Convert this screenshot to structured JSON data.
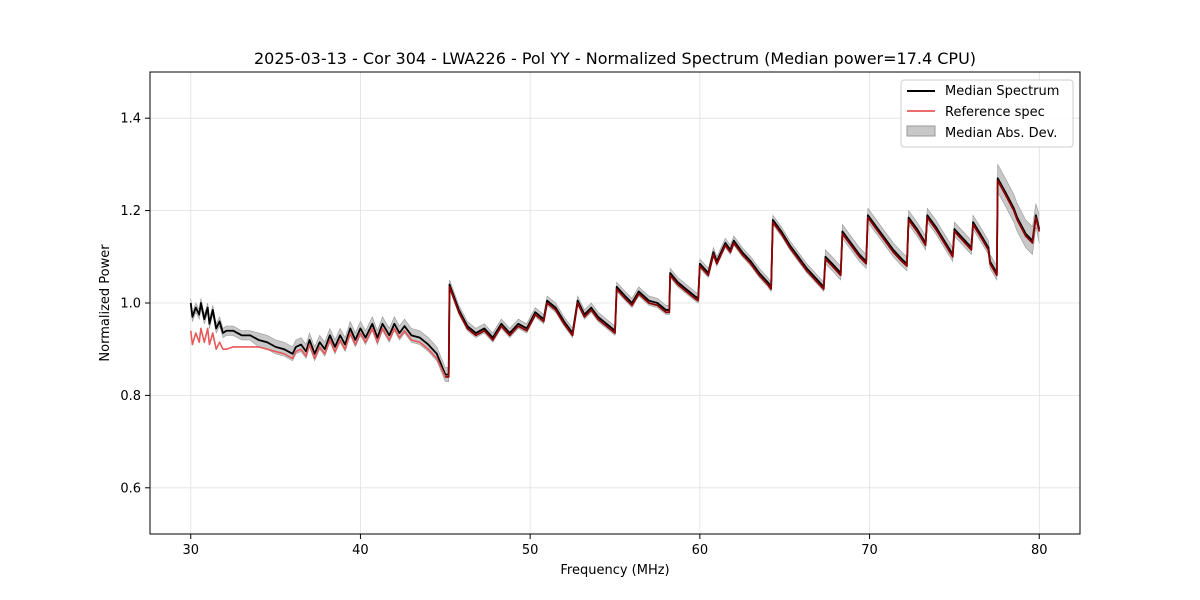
{
  "chart_data": {
    "type": "line",
    "title": "2025-03-13 - Cor 304 - LWA226 - Pol YY - Normalized Spectrum (Median power=17.4 CPU)",
    "xlabel": "Frequency (MHz)",
    "ylabel": "Normalized Power",
    "xlim": [
      27.6,
      82.4
    ],
    "ylim": [
      0.5,
      1.5
    ],
    "xticks": [
      30,
      40,
      50,
      60,
      70,
      80
    ],
    "yticks": [
      0.6,
      0.8,
      1.0,
      1.2,
      1.4
    ],
    "xtick_labels": [
      "30",
      "40",
      "50",
      "60",
      "70",
      "80"
    ],
    "ytick_labels": [
      "0.6",
      "0.8",
      "1.0",
      "1.2",
      "1.4"
    ],
    "grid": true,
    "legend_position": "top-right",
    "legend": [
      "Median Spectrum",
      "Reference spec",
      "Median Abs. Dev."
    ],
    "colors": {
      "median": "#000000",
      "reference": "#e8595a",
      "reference_overlap": "#8b0000",
      "mad_fill": "#c8c8c8",
      "mad_edge": "#999999",
      "grid": "#e0e0e0"
    },
    "series": [
      {
        "name": "Median Spectrum",
        "x": [
          30.0,
          30.1,
          30.3,
          30.5,
          30.6,
          30.8,
          31.0,
          31.1,
          31.3,
          31.5,
          31.7,
          31.9,
          32.1,
          32.5,
          33.0,
          33.5,
          34.0,
          34.5,
          35.0,
          35.5,
          36.0,
          36.2,
          36.5,
          36.8,
          37.0,
          37.3,
          37.6,
          37.9,
          38.2,
          38.5,
          38.8,
          39.1,
          39.4,
          39.7,
          40.0,
          40.3,
          40.7,
          41.0,
          41.3,
          41.7,
          42.0,
          42.3,
          42.6,
          43.0,
          43.5,
          44.0,
          44.5,
          45.0,
          45.2,
          45.25,
          45.8,
          46.3,
          46.8,
          47.3,
          47.8,
          48.3,
          48.8,
          49.3,
          49.8,
          50.3,
          50.8,
          51.0,
          51.5,
          52.0,
          52.5,
          52.8,
          53.2,
          53.6,
          54.0,
          54.5,
          55.0,
          55.1,
          55.6,
          56.0,
          56.4,
          57.0,
          57.5,
          58.0,
          58.2,
          58.25,
          58.7,
          59.2,
          59.7,
          59.9,
          60.0,
          60.5,
          60.8,
          61.0,
          61.5,
          61.8,
          62.0,
          62.5,
          63.0,
          63.5,
          64.0,
          64.2,
          64.3,
          64.8,
          65.3,
          65.8,
          66.3,
          66.8,
          67.3,
          67.4,
          67.8,
          68.3,
          68.4,
          68.9,
          69.4,
          69.8,
          69.9,
          70.4,
          70.9,
          71.4,
          71.9,
          72.2,
          72.3,
          72.8,
          73.3,
          73.4,
          73.9,
          74.4,
          74.9,
          75.0,
          75.5,
          76.0,
          76.1,
          76.6,
          77.0,
          77.1,
          77.5,
          77.55,
          78.0,
          78.5,
          78.7,
          79.2,
          79.6,
          79.8,
          80.0
        ],
        "values": [
          1.0,
          0.97,
          0.99,
          0.975,
          1.0,
          0.965,
          0.99,
          0.955,
          0.985,
          0.945,
          0.96,
          0.935,
          0.94,
          0.94,
          0.93,
          0.93,
          0.92,
          0.915,
          0.905,
          0.9,
          0.89,
          0.905,
          0.91,
          0.895,
          0.92,
          0.89,
          0.915,
          0.9,
          0.93,
          0.905,
          0.93,
          0.91,
          0.945,
          0.92,
          0.945,
          0.925,
          0.955,
          0.925,
          0.955,
          0.93,
          0.955,
          0.935,
          0.95,
          0.93,
          0.925,
          0.91,
          0.89,
          0.845,
          0.845,
          1.04,
          0.985,
          0.95,
          0.935,
          0.945,
          0.925,
          0.955,
          0.935,
          0.955,
          0.945,
          0.98,
          0.965,
          1.005,
          0.99,
          0.96,
          0.935,
          1.005,
          0.975,
          0.99,
          0.97,
          0.955,
          0.94,
          1.035,
          1.015,
          1.0,
          1.025,
          1.005,
          1.0,
          0.985,
          0.985,
          1.065,
          1.045,
          1.03,
          1.015,
          1.01,
          1.085,
          1.065,
          1.11,
          1.09,
          1.13,
          1.115,
          1.135,
          1.11,
          1.09,
          1.065,
          1.045,
          1.035,
          1.18,
          1.155,
          1.125,
          1.1,
          1.075,
          1.055,
          1.035,
          1.1,
          1.085,
          1.065,
          1.155,
          1.13,
          1.105,
          1.09,
          1.19,
          1.165,
          1.14,
          1.115,
          1.095,
          1.085,
          1.185,
          1.16,
          1.13,
          1.19,
          1.165,
          1.135,
          1.105,
          1.16,
          1.14,
          1.12,
          1.175,
          1.145,
          1.12,
          1.09,
          1.065,
          1.27,
          1.24,
          1.205,
          1.185,
          1.15,
          1.135,
          1.19,
          1.16
        ]
      },
      {
        "name": "Reference spec",
        "x": [
          30.0,
          30.1,
          30.3,
          30.5,
          30.6,
          30.8,
          31.0,
          31.1,
          31.3,
          31.5,
          31.7,
          31.9,
          32.1,
          32.5,
          33.0,
          33.5,
          34.0,
          34.5,
          35.0,
          35.5,
          36.0,
          36.2,
          36.5,
          36.8,
          37.0,
          37.3,
          37.6,
          37.9,
          38.2,
          38.5,
          38.8,
          39.1,
          39.4,
          39.7,
          40.0,
          40.3,
          40.7,
          41.0,
          41.3,
          41.7,
          42.0,
          42.3,
          42.6,
          43.0,
          43.5,
          44.0,
          44.5,
          45.0,
          45.2,
          45.25,
          45.8,
          46.3,
          46.8,
          47.3,
          47.8,
          48.3,
          48.8,
          49.3,
          49.8,
          50.3,
          50.8,
          51.0,
          51.5,
          52.0,
          52.5,
          52.8,
          53.2,
          53.6,
          54.0,
          54.5,
          55.0,
          55.1,
          55.6,
          56.0,
          56.4,
          57.0,
          57.5,
          58.0,
          58.2,
          58.25,
          58.7,
          59.2,
          59.7,
          59.9,
          60.0,
          60.5,
          60.8,
          61.0,
          61.5,
          61.8,
          62.0,
          62.5,
          63.0,
          63.5,
          64.0,
          64.2,
          64.3,
          64.8,
          65.3,
          65.8,
          66.3,
          66.8,
          67.3,
          67.4,
          67.8,
          68.3,
          68.4,
          68.9,
          69.4,
          69.8,
          69.9,
          70.4,
          70.9,
          71.4,
          71.9,
          72.2,
          72.3,
          72.8,
          73.3,
          73.4,
          73.9,
          74.4,
          74.9,
          75.0,
          75.5,
          76.0,
          76.1,
          76.6,
          77.0,
          77.1,
          77.5,
          77.55,
          78.0,
          78.5,
          78.7,
          79.2,
          79.6,
          79.8,
          80.0
        ],
        "values": [
          0.94,
          0.91,
          0.935,
          0.915,
          0.945,
          0.915,
          0.945,
          0.91,
          0.935,
          0.9,
          0.915,
          0.9,
          0.9,
          0.905,
          0.905,
          0.905,
          0.905,
          0.9,
          0.895,
          0.89,
          0.88,
          0.895,
          0.9,
          0.885,
          0.91,
          0.88,
          0.905,
          0.89,
          0.92,
          0.895,
          0.92,
          0.9,
          0.935,
          0.91,
          0.935,
          0.915,
          0.945,
          0.915,
          0.945,
          0.92,
          0.945,
          0.925,
          0.94,
          0.92,
          0.915,
          0.9,
          0.88,
          0.84,
          0.84,
          1.035,
          0.98,
          0.945,
          0.93,
          0.94,
          0.92,
          0.95,
          0.93,
          0.95,
          0.94,
          0.975,
          0.96,
          1.0,
          0.985,
          0.955,
          0.93,
          1.0,
          0.97,
          0.985,
          0.965,
          0.95,
          0.935,
          1.03,
          1.01,
          0.995,
          1.02,
          1.0,
          0.995,
          0.98,
          0.98,
          1.06,
          1.04,
          1.025,
          1.01,
          1.005,
          1.08,
          1.06,
          1.105,
          1.085,
          1.125,
          1.11,
          1.13,
          1.105,
          1.085,
          1.06,
          1.04,
          1.03,
          1.175,
          1.15,
          1.12,
          1.095,
          1.07,
          1.05,
          1.03,
          1.095,
          1.08,
          1.06,
          1.15,
          1.125,
          1.1,
          1.085,
          1.185,
          1.16,
          1.135,
          1.11,
          1.09,
          1.08,
          1.18,
          1.155,
          1.125,
          1.185,
          1.16,
          1.13,
          1.1,
          1.155,
          1.135,
          1.115,
          1.17,
          1.14,
          1.115,
          1.085,
          1.06,
          1.265,
          1.235,
          1.2,
          1.18,
          1.145,
          1.13,
          1.185,
          1.155
        ]
      },
      {
        "name": "Median Abs. Dev.",
        "x": [
          30.0,
          30.1,
          30.3,
          30.5,
          30.6,
          30.8,
          31.0,
          31.1,
          31.3,
          31.5,
          31.7,
          31.9,
          32.1,
          32.5,
          33.0,
          33.5,
          34.0,
          34.5,
          35.0,
          35.5,
          36.0,
          36.2,
          36.5,
          36.8,
          37.0,
          37.3,
          37.6,
          37.9,
          38.2,
          38.5,
          38.8,
          39.1,
          39.4,
          39.7,
          40.0,
          40.3,
          40.7,
          41.0,
          41.3,
          41.7,
          42.0,
          42.3,
          42.6,
          43.0,
          43.5,
          44.0,
          44.5,
          45.0,
          45.2,
          45.25,
          45.8,
          46.3,
          46.8,
          47.3,
          47.8,
          48.3,
          48.8,
          49.3,
          49.8,
          50.3,
          50.8,
          51.0,
          51.5,
          52.0,
          52.5,
          52.8,
          53.2,
          53.6,
          54.0,
          54.5,
          55.0,
          55.1,
          55.6,
          56.0,
          56.4,
          57.0,
          57.5,
          58.0,
          58.2,
          58.25,
          58.7,
          59.2,
          59.7,
          59.9,
          60.0,
          60.5,
          60.8,
          61.0,
          61.5,
          61.8,
          62.0,
          62.5,
          63.0,
          63.5,
          64.0,
          64.2,
          64.3,
          64.8,
          65.3,
          65.8,
          66.3,
          66.8,
          67.3,
          67.4,
          67.8,
          68.3,
          68.4,
          68.9,
          69.4,
          69.8,
          69.9,
          70.4,
          70.9,
          71.4,
          71.9,
          72.2,
          72.3,
          72.8,
          73.3,
          73.4,
          73.9,
          74.4,
          74.9,
          75.0,
          75.5,
          76.0,
          76.1,
          76.6,
          77.0,
          77.1,
          77.5,
          77.55,
          78.0,
          78.5,
          78.7,
          79.2,
          79.6,
          79.8,
          80.0
        ],
        "upper": [
          1.01,
          0.98,
          1.0,
          0.985,
          1.01,
          0.975,
          1.0,
          0.965,
          0.995,
          0.955,
          0.97,
          0.945,
          0.95,
          0.95,
          0.94,
          0.94,
          0.935,
          0.93,
          0.92,
          0.915,
          0.905,
          0.92,
          0.925,
          0.91,
          0.935,
          0.905,
          0.93,
          0.915,
          0.945,
          0.92,
          0.945,
          0.925,
          0.96,
          0.935,
          0.96,
          0.94,
          0.97,
          0.94,
          0.97,
          0.945,
          0.97,
          0.95,
          0.965,
          0.945,
          0.94,
          0.925,
          0.905,
          0.86,
          0.86,
          1.05,
          0.995,
          0.96,
          0.945,
          0.955,
          0.935,
          0.965,
          0.945,
          0.965,
          0.955,
          0.99,
          0.975,
          1.015,
          1.0,
          0.97,
          0.945,
          1.015,
          0.985,
          1.0,
          0.98,
          0.965,
          0.95,
          1.045,
          1.025,
          1.01,
          1.035,
          1.015,
          1.01,
          0.995,
          0.995,
          1.075,
          1.055,
          1.04,
          1.025,
          1.02,
          1.095,
          1.075,
          1.12,
          1.1,
          1.14,
          1.125,
          1.145,
          1.12,
          1.1,
          1.075,
          1.055,
          1.045,
          1.19,
          1.165,
          1.135,
          1.11,
          1.085,
          1.065,
          1.045,
          1.115,
          1.1,
          1.08,
          1.17,
          1.145,
          1.12,
          1.105,
          1.205,
          1.18,
          1.155,
          1.13,
          1.11,
          1.1,
          1.2,
          1.175,
          1.145,
          1.205,
          1.18,
          1.15,
          1.12,
          1.175,
          1.155,
          1.135,
          1.19,
          1.16,
          1.135,
          1.105,
          1.08,
          1.3,
          1.27,
          1.235,
          1.215,
          1.18,
          1.165,
          1.215,
          1.19
        ],
        "lower": [
          0.99,
          0.96,
          0.98,
          0.965,
          0.99,
          0.955,
          0.98,
          0.945,
          0.975,
          0.935,
          0.95,
          0.925,
          0.93,
          0.93,
          0.92,
          0.92,
          0.905,
          0.9,
          0.89,
          0.885,
          0.875,
          0.89,
          0.895,
          0.88,
          0.905,
          0.875,
          0.9,
          0.885,
          0.915,
          0.89,
          0.915,
          0.895,
          0.93,
          0.905,
          0.93,
          0.91,
          0.94,
          0.91,
          0.94,
          0.915,
          0.94,
          0.92,
          0.935,
          0.915,
          0.91,
          0.895,
          0.875,
          0.83,
          0.83,
          1.03,
          0.975,
          0.94,
          0.925,
          0.935,
          0.915,
          0.945,
          0.925,
          0.945,
          0.935,
          0.97,
          0.955,
          0.995,
          0.98,
          0.95,
          0.925,
          0.995,
          0.965,
          0.98,
          0.96,
          0.945,
          0.93,
          1.025,
          1.005,
          0.99,
          1.015,
          0.995,
          0.99,
          0.975,
          0.975,
          1.055,
          1.035,
          1.02,
          1.005,
          1.0,
          1.075,
          1.055,
          1.1,
          1.08,
          1.12,
          1.105,
          1.125,
          1.1,
          1.08,
          1.055,
          1.035,
          1.025,
          1.17,
          1.145,
          1.115,
          1.09,
          1.065,
          1.045,
          1.025,
          1.085,
          1.07,
          1.05,
          1.14,
          1.115,
          1.09,
          1.075,
          1.175,
          1.15,
          1.125,
          1.1,
          1.08,
          1.07,
          1.17,
          1.145,
          1.115,
          1.175,
          1.15,
          1.12,
          1.09,
          1.145,
          1.125,
          1.105,
          1.16,
          1.13,
          1.105,
          1.075,
          1.05,
          1.24,
          1.21,
          1.175,
          1.155,
          1.12,
          1.105,
          1.165,
          1.13
        ]
      }
    ]
  }
}
